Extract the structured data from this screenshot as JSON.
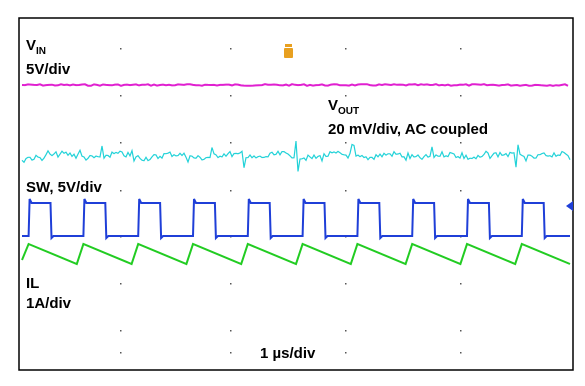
{
  "chart_data": {
    "type": "line",
    "title": "",
    "xlabel": "1 µs/div",
    "ylabel": "",
    "grid": "dotted-markers",
    "series": [
      {
        "name": "VIN",
        "label": "V",
        "label_sub": "IN",
        "scale": "5V/div",
        "color": "#e020d0",
        "shape": "flat"
      },
      {
        "name": "VOUT",
        "label": "V",
        "label_sub": "OUT",
        "scale": "20 mV/div, AC coupled",
        "color": "#22d2d8",
        "shape": "ripple"
      },
      {
        "name": "SW",
        "label": "SW, 5V/div",
        "scale": "",
        "color": "#1f3fd8",
        "shape": "square"
      },
      {
        "name": "IL",
        "label": "IL",
        "scale": "1A/div",
        "color": "#22cc22",
        "shape": "sawtooth"
      }
    ],
    "switching_cycles": 10
  },
  "markers": {
    "trigger_icon": "trigger-flag-icon",
    "trigger_color": "#e8a020",
    "level_marker_color": "#1f3fd8"
  }
}
